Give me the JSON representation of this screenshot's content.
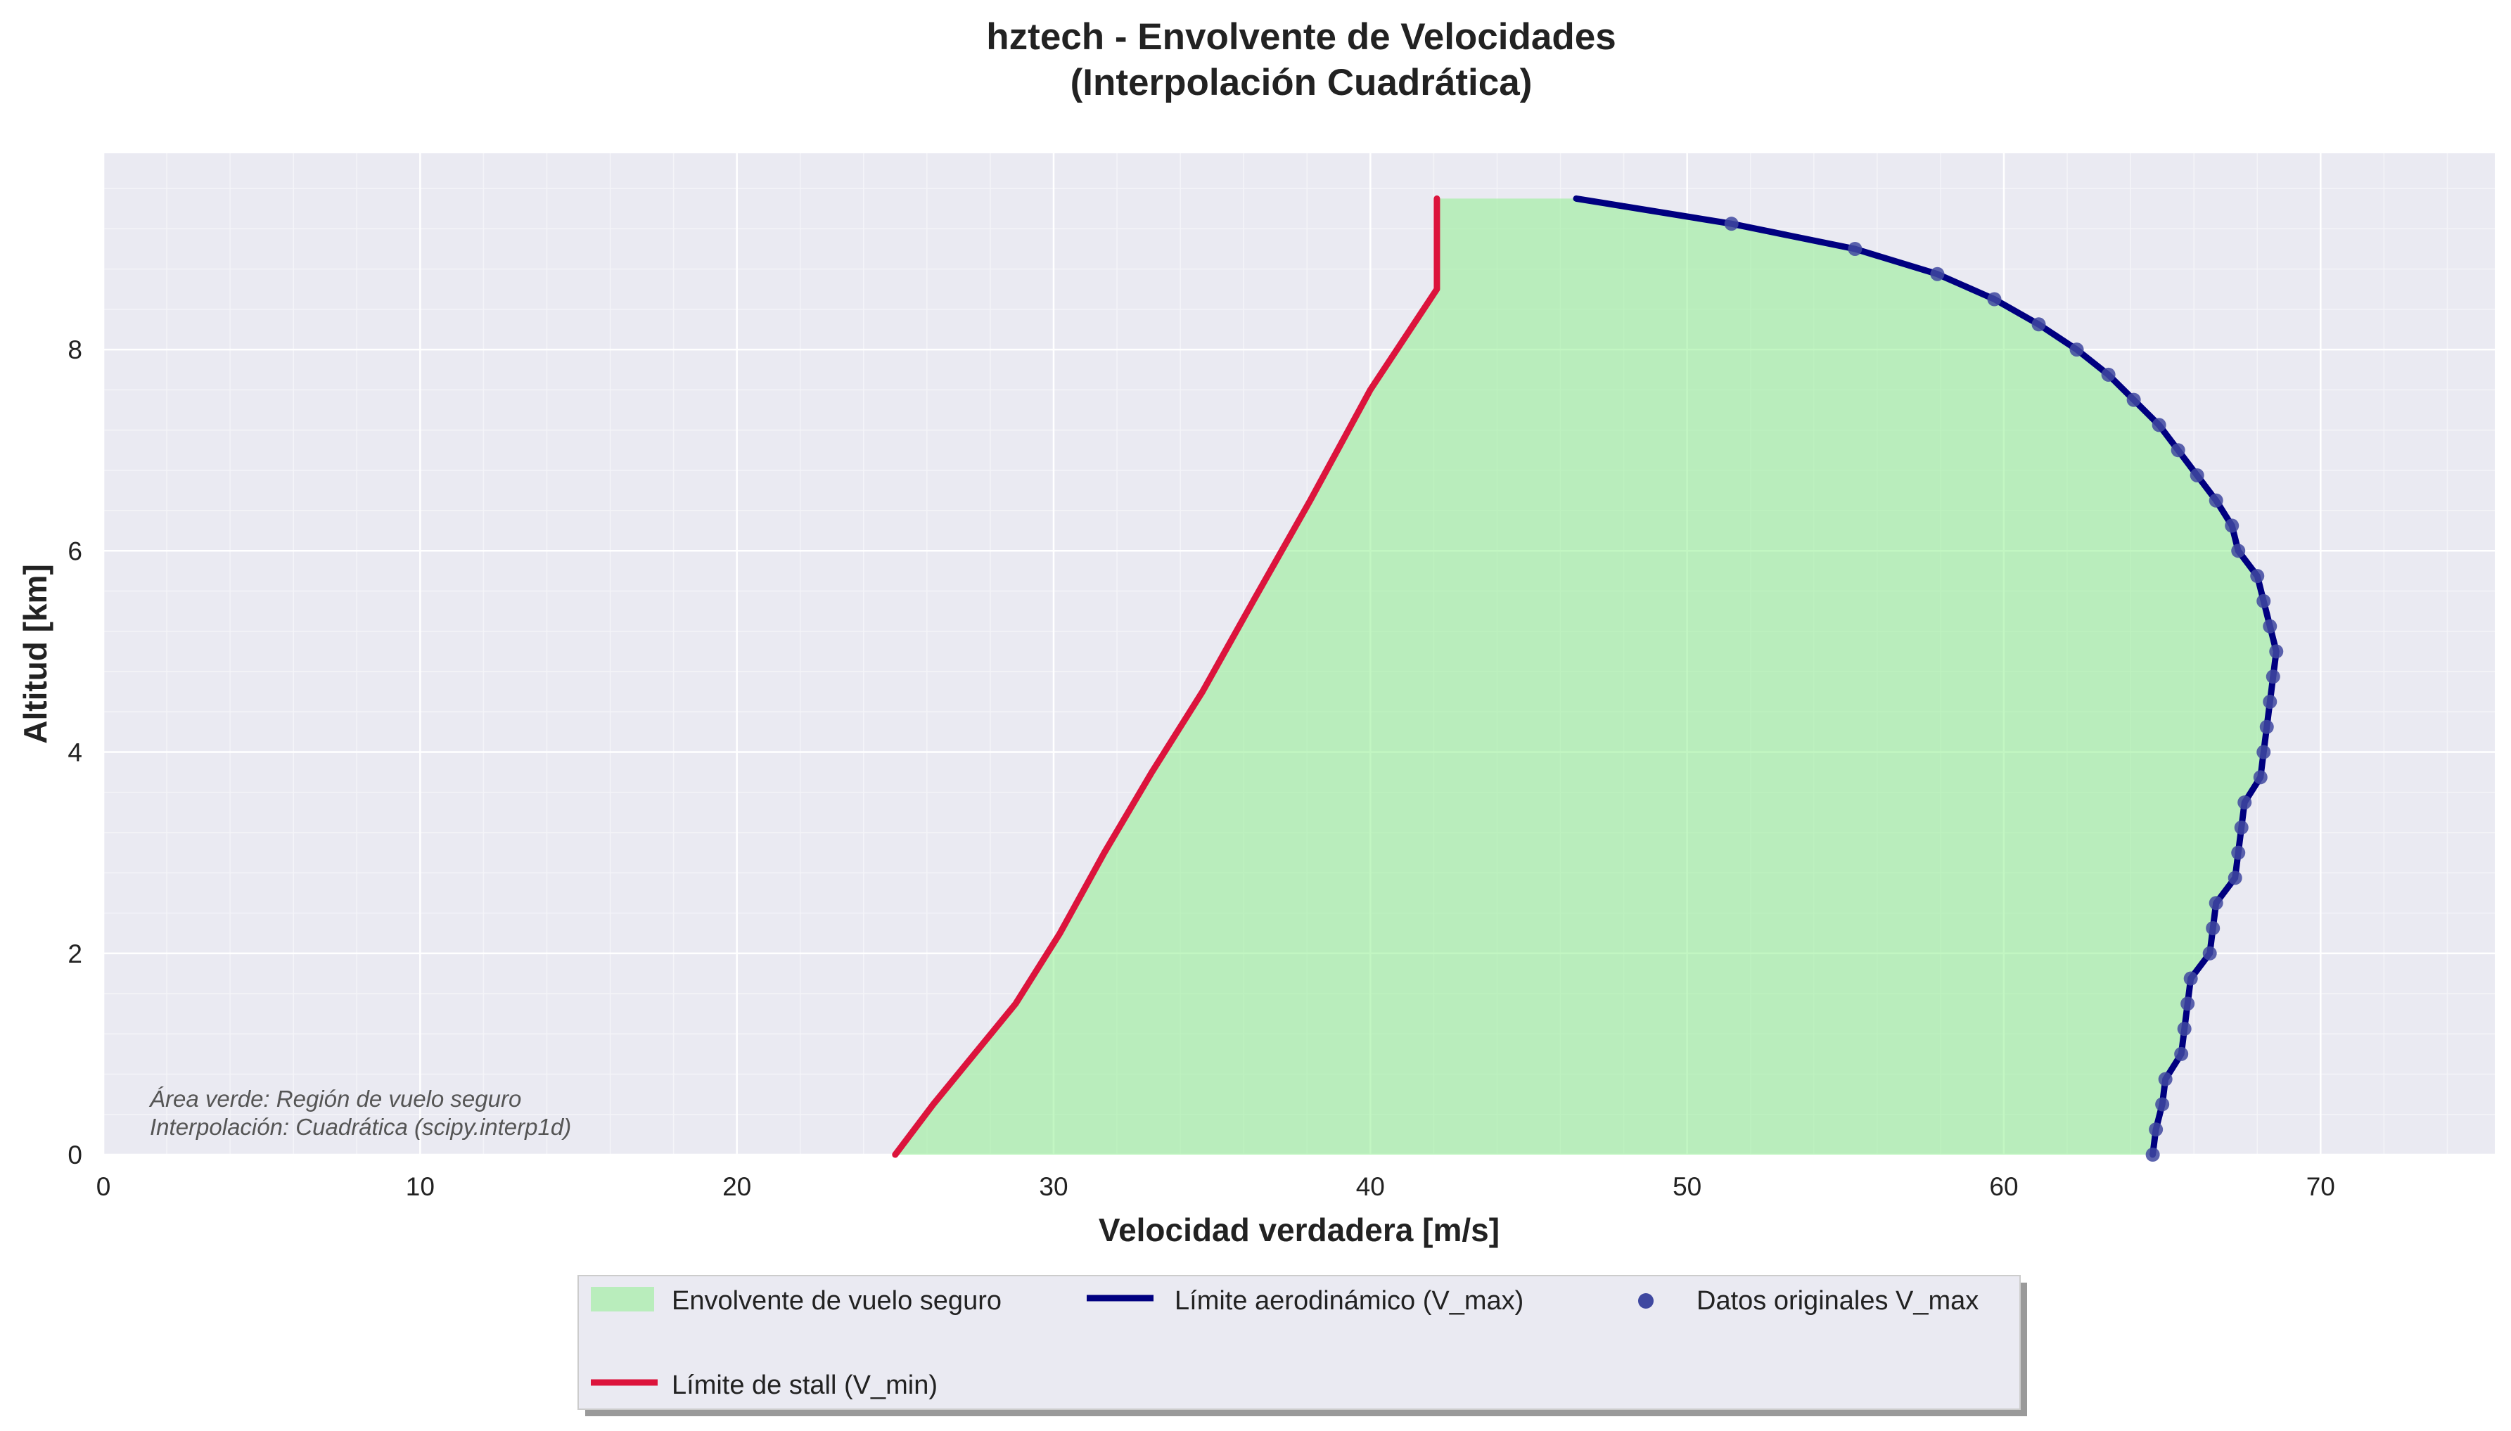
{
  "chart_data": {
    "type": "line",
    "title_line1": "hztech - Envolvente de Velocidades",
    "title_line2": "(Interpolación Cuadrática)",
    "xlabel": "Velocidad verdadera [m/s]",
    "ylabel": "Altitud [km]",
    "xlim": [
      0,
      75.5
    ],
    "ylim": [
      0,
      9.95
    ],
    "xticks": [
      0,
      10,
      20,
      30,
      40,
      50,
      60,
      70
    ],
    "yticks": [
      0,
      2,
      4,
      6,
      8
    ],
    "grid": true,
    "legend_position": "bottom-center",
    "annotations": [
      "Área verde: Región de vuelo seguro",
      "Interpolación: Cuadrática (scipy.interp1d)"
    ],
    "colors": {
      "stall": "#dc143c",
      "vmax": "#000080",
      "points": "#3f48a0",
      "envelope": "#90ee90",
      "plot_bg": "#eaeaf2",
      "grid": "#ffffff"
    },
    "series": [
      {
        "name": "Límite de stall (V_min)",
        "x": [
          25.0,
          26.2,
          27.5,
          28.8,
          30.2,
          31.6,
          33.1,
          34.7,
          36.3,
          38.1,
          40.0,
          42.1
        ],
        "y": [
          0,
          0.5,
          1.0,
          1.5,
          2.2,
          3.0,
          3.8,
          4.6,
          5.5,
          6.5,
          7.6,
          8.6
        ],
        "extend_to": [
          42.1,
          9.5
        ]
      },
      {
        "name": "Límite aerodinámico (V_max)",
        "x": [
          64.7,
          64.8,
          65.0,
          65.1,
          65.6,
          65.7,
          65.8,
          65.9,
          66.5,
          66.6,
          66.7,
          67.3,
          67.4,
          67.5,
          67.6,
          68.1,
          68.2,
          68.3,
          68.4,
          68.5,
          68.6,
          68.4,
          68.2,
          68.0,
          67.4,
          67.2,
          66.7,
          66.1,
          65.5,
          64.9,
          64.1,
          63.3,
          62.3,
          61.1,
          59.7,
          57.9,
          55.3,
          51.4,
          46.5
        ],
        "y": [
          0,
          0.25,
          0.5,
          0.75,
          1.0,
          1.25,
          1.5,
          1.75,
          2.0,
          2.25,
          2.5,
          2.75,
          3.0,
          3.25,
          3.5,
          3.75,
          4.0,
          4.25,
          4.5,
          4.75,
          5.0,
          5.25,
          5.5,
          5.75,
          6.0,
          6.25,
          6.5,
          6.75,
          7.0,
          7.25,
          7.5,
          7.75,
          8.0,
          8.25,
          8.5,
          8.75,
          9.0,
          9.25,
          9.5
        ]
      },
      {
        "name": "Datos originales V_max",
        "type": "scatter",
        "x": [
          64.7,
          64.8,
          65.0,
          65.1,
          65.6,
          65.7,
          65.8,
          65.9,
          66.5,
          66.6,
          66.7,
          67.3,
          67.4,
          67.5,
          67.6,
          68.1,
          68.2,
          68.3,
          68.4,
          68.5,
          68.6,
          68.4,
          68.2,
          68.0,
          67.4,
          67.2,
          66.7,
          66.1,
          65.5,
          64.9,
          64.1,
          63.3,
          62.3,
          61.1,
          59.7,
          57.9,
          55.3,
          51.4
        ],
        "y": [
          0,
          0.25,
          0.5,
          0.75,
          1.0,
          1.25,
          1.5,
          1.75,
          2.0,
          2.25,
          2.5,
          2.75,
          3.0,
          3.25,
          3.5,
          3.75,
          4.0,
          4.25,
          4.5,
          4.75,
          5.0,
          5.25,
          5.5,
          5.75,
          6.0,
          6.25,
          6.5,
          6.75,
          7.0,
          7.25,
          7.5,
          7.75,
          8.0,
          8.25,
          8.5,
          8.75,
          9.0,
          9.25
        ]
      }
    ],
    "legend": [
      {
        "label": "Envolvente de vuelo seguro",
        "kind": "area"
      },
      {
        "label": "Límite aerodinámico (V_max)",
        "kind": "line-vmax"
      },
      {
        "label": "Datos originales V_max",
        "kind": "dot"
      },
      {
        "label": "Límite de stall (V_min)",
        "kind": "line-stall"
      }
    ]
  }
}
